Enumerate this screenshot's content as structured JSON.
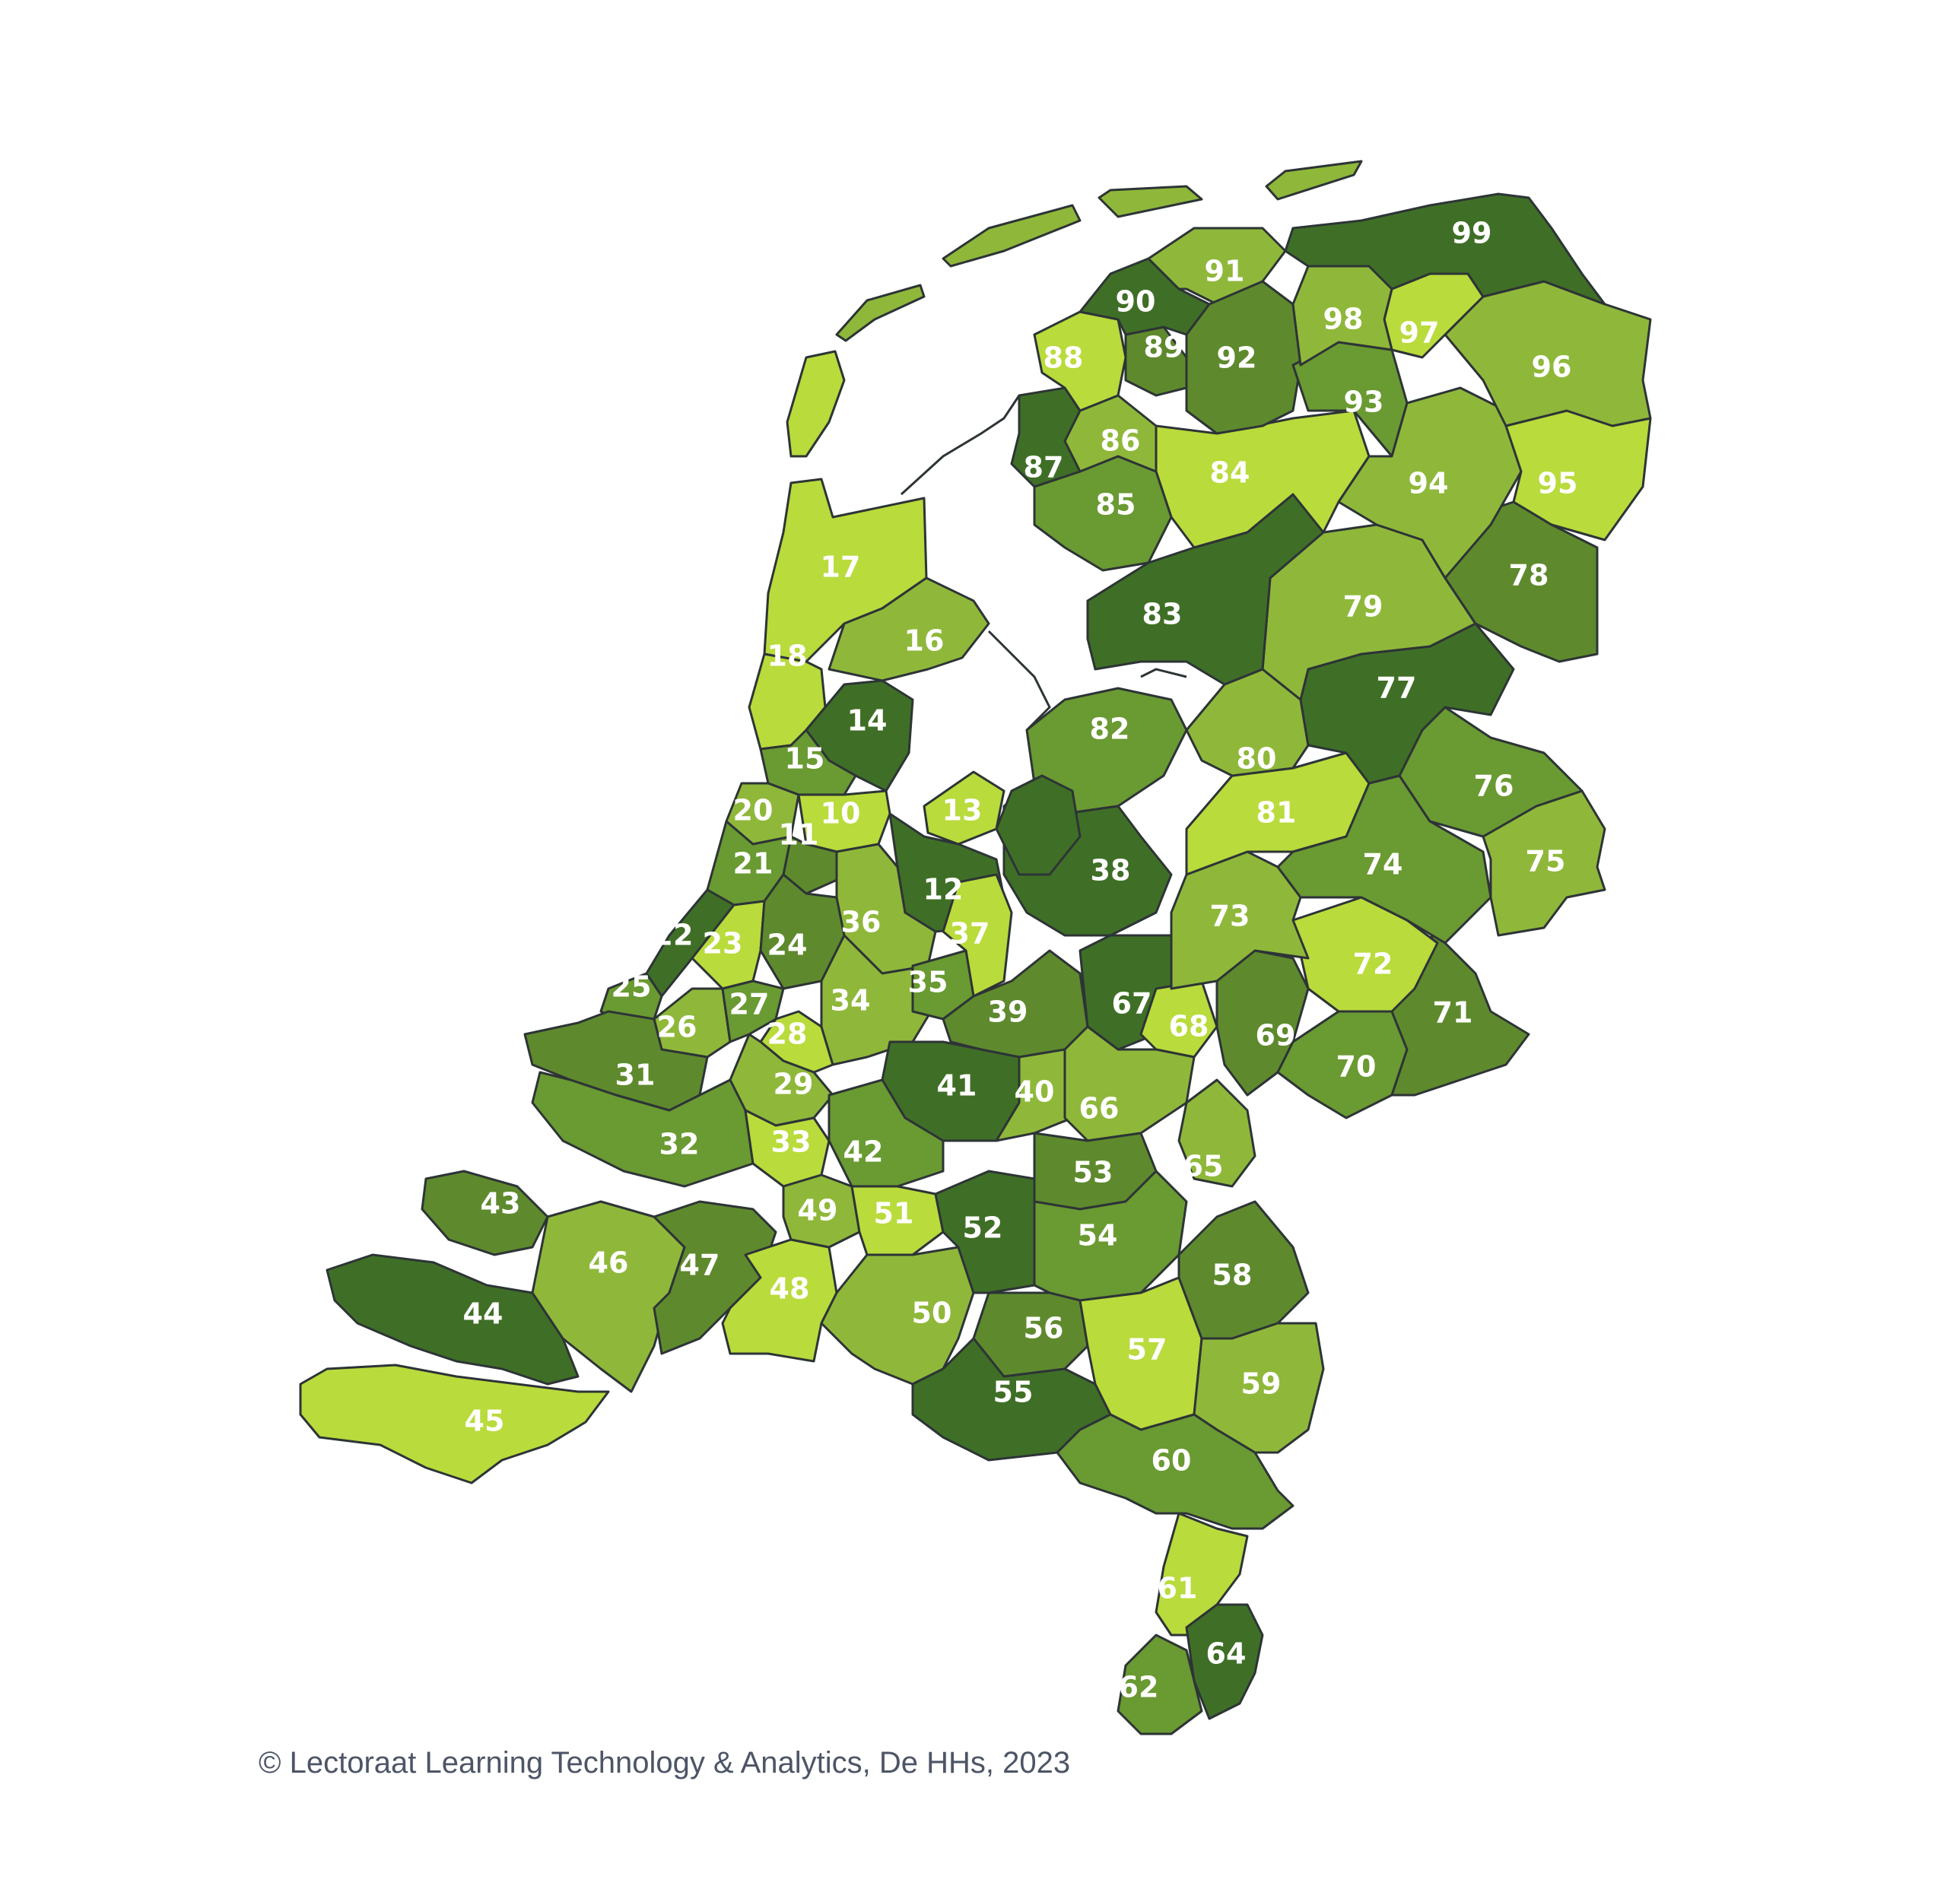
{
  "colors": {
    "level_1": "#b9db3c",
    "level_2": "#8fb83a",
    "level_3": "#6a9a32",
    "level_4": "#5e8a2d",
    "level_5": "#3f6f26",
    "border": "#2d3436",
    "label": "#ffffff"
  },
  "copyright": "© Lectoraat Learning Technology & Analytics, De HHs, 2023",
  "regions": [
    {
      "id": "10",
      "level": 1
    },
    {
      "id": "11",
      "level": 4
    },
    {
      "id": "12",
      "level": 5
    },
    {
      "id": "13",
      "level": 1
    },
    {
      "id": "14",
      "level": 5
    },
    {
      "id": "15",
      "level": 3
    },
    {
      "id": "16",
      "level": 2
    },
    {
      "id": "17",
      "level": 1
    },
    {
      "id": "18",
      "level": 1
    },
    {
      "id": "20",
      "level": 2
    },
    {
      "id": "21",
      "level": 3
    },
    {
      "id": "22",
      "level": 5
    },
    {
      "id": "23",
      "level": 1
    },
    {
      "id": "24",
      "level": 4
    },
    {
      "id": "25",
      "level": 3
    },
    {
      "id": "26",
      "level": 2
    },
    {
      "id": "27",
      "level": 3
    },
    {
      "id": "28",
      "level": 1
    },
    {
      "id": "29",
      "level": 2
    },
    {
      "id": "31",
      "level": 4
    },
    {
      "id": "32",
      "level": 3
    },
    {
      "id": "33",
      "level": 1
    },
    {
      "id": "34",
      "level": 2
    },
    {
      "id": "35",
      "level": 3
    },
    {
      "id": "36",
      "level": 2
    },
    {
      "id": "37",
      "level": 1
    },
    {
      "id": "38",
      "level": 5
    },
    {
      "id": "39",
      "level": 4
    },
    {
      "id": "40",
      "level": 2
    },
    {
      "id": "41",
      "level": 5
    },
    {
      "id": "42",
      "level": 3
    },
    {
      "id": "43",
      "level": 4
    },
    {
      "id": "44",
      "level": 5
    },
    {
      "id": "45",
      "level": 1
    },
    {
      "id": "46",
      "level": 2
    },
    {
      "id": "47",
      "level": 4
    },
    {
      "id": "48",
      "level": 1
    },
    {
      "id": "49",
      "level": 2
    },
    {
      "id": "50",
      "level": 2
    },
    {
      "id": "51",
      "level": 1
    },
    {
      "id": "52",
      "level": 5
    },
    {
      "id": "53",
      "level": 4
    },
    {
      "id": "54",
      "level": 3
    },
    {
      "id": "55",
      "level": 5
    },
    {
      "id": "56",
      "level": 4
    },
    {
      "id": "57",
      "level": 1
    },
    {
      "id": "58",
      "level": 4
    },
    {
      "id": "59",
      "level": 2
    },
    {
      "id": "60",
      "level": 3
    },
    {
      "id": "61",
      "level": 1
    },
    {
      "id": "62",
      "level": 3
    },
    {
      "id": "64",
      "level": 5
    },
    {
      "id": "65",
      "level": 2
    },
    {
      "id": "66",
      "level": 2
    },
    {
      "id": "67",
      "level": 5
    },
    {
      "id": "68",
      "level": 1
    },
    {
      "id": "69",
      "level": 4
    },
    {
      "id": "70",
      "level": 3
    },
    {
      "id": "71",
      "level": 4
    },
    {
      "id": "72",
      "level": 1
    },
    {
      "id": "73",
      "level": 2
    },
    {
      "id": "74",
      "level": 3
    },
    {
      "id": "75",
      "level": 2
    },
    {
      "id": "76",
      "level": 3
    },
    {
      "id": "77",
      "level": 5
    },
    {
      "id": "78",
      "level": 4
    },
    {
      "id": "79",
      "level": 2
    },
    {
      "id": "80",
      "level": 2
    },
    {
      "id": "81",
      "level": 1
    },
    {
      "id": "82",
      "level": 3
    },
    {
      "id": "83",
      "level": 5
    },
    {
      "id": "84",
      "level": 1
    },
    {
      "id": "85",
      "level": 3
    },
    {
      "id": "86",
      "level": 2
    },
    {
      "id": "87",
      "level": 5
    },
    {
      "id": "88",
      "level": 1
    },
    {
      "id": "89",
      "level": 4
    },
    {
      "id": "90",
      "level": 5
    },
    {
      "id": "91",
      "level": 2
    },
    {
      "id": "92",
      "level": 4
    },
    {
      "id": "93",
      "level": 3
    },
    {
      "id": "94",
      "level": 2
    },
    {
      "id": "95",
      "level": 1
    },
    {
      "id": "96",
      "level": 2
    },
    {
      "id": "97",
      "level": 1
    },
    {
      "id": "98",
      "level": 2
    },
    {
      "id": "99",
      "level": 5
    }
  ]
}
